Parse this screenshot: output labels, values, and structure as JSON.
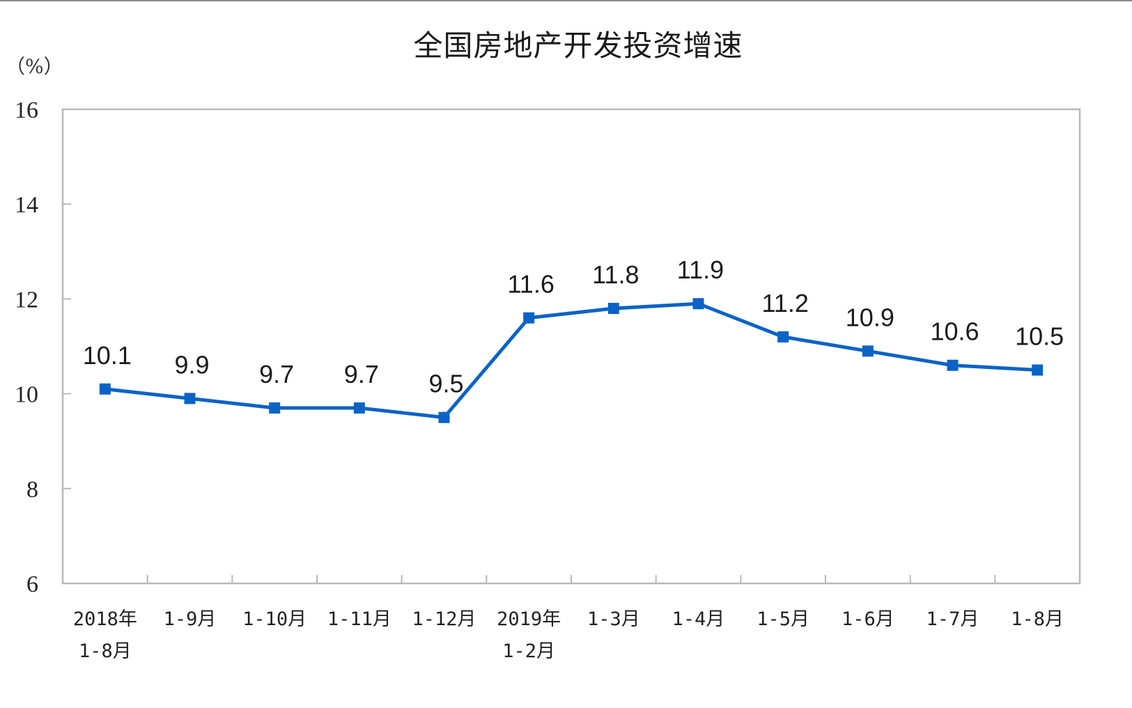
{
  "chart_data": {
    "type": "line",
    "title": "全国房地产开发投资增速",
    "ylabel": "（%）",
    "xlabel": "",
    "ylim": [
      6,
      16
    ],
    "yticks": [
      6,
      8,
      10,
      12,
      14,
      16
    ],
    "grid": false,
    "legend": null,
    "categories": [
      [
        "2018年",
        "1-8月"
      ],
      [
        "1-9月"
      ],
      [
        "1-10月"
      ],
      [
        "1-11月"
      ],
      [
        "1-12月"
      ],
      [
        "2019年",
        "1-2月"
      ],
      [
        "1-3月"
      ],
      [
        "1-4月"
      ],
      [
        "1-5月"
      ],
      [
        "1-6月"
      ],
      [
        "1-7月"
      ],
      [
        "1-8月"
      ]
    ],
    "series": [
      {
        "name": "全国房地产开发投资增速",
        "color": "#0b63c5",
        "marker": "square",
        "values": [
          10.1,
          9.9,
          9.7,
          9.7,
          9.5,
          11.6,
          11.8,
          11.9,
          11.2,
          10.9,
          10.6,
          10.5
        ],
        "labels": [
          "10.1",
          "9.9",
          "9.7",
          "9.7",
          "9.5",
          "11.6",
          "11.8",
          "11.9",
          "11.2",
          "10.9",
          "10.6",
          "10.5"
        ]
      }
    ]
  },
  "colors": {
    "line": "#0b63c5",
    "axis": "#b8b8b8",
    "text": "#1a1a1a"
  }
}
